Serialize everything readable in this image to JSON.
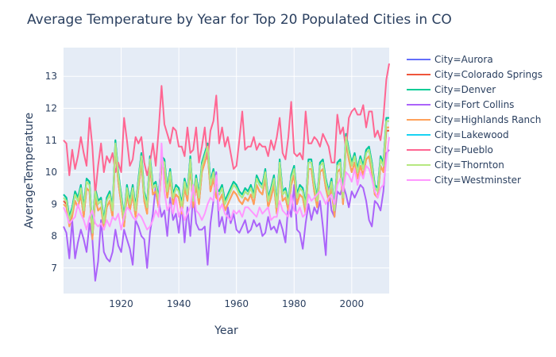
{
  "chart_data": {
    "type": "line",
    "title": "Average Temperature by Year for Top 20 Populated Cities in CO",
    "xlabel": "Year",
    "ylabel": "AverageTemperature",
    "xlim": [
      1900,
      2013
    ],
    "ylim": [
      6.2,
      13.9
    ],
    "x_ticks": [
      "1920",
      "1940",
      "1960",
      "1980",
      "2000"
    ],
    "y_ticks": [
      "7",
      "8",
      "9",
      "10",
      "11",
      "12",
      "13"
    ],
    "grid": true,
    "legend_position": "right",
    "x": [
      1900,
      1901,
      1902,
      1903,
      1904,
      1905,
      1906,
      1907,
      1908,
      1909,
      1910,
      1911,
      1912,
      1913,
      1914,
      1915,
      1916,
      1917,
      1918,
      1919,
      1920,
      1921,
      1922,
      1923,
      1924,
      1925,
      1926,
      1927,
      1928,
      1929,
      1930,
      1931,
      1932,
      1933,
      1934,
      1935,
      1936,
      1937,
      1938,
      1939,
      1940,
      1941,
      1942,
      1943,
      1944,
      1945,
      1946,
      1947,
      1948,
      1949,
      1950,
      1951,
      1952,
      1953,
      1954,
      1955,
      1956,
      1957,
      1958,
      1959,
      1960,
      1961,
      1962,
      1963,
      1964,
      1965,
      1966,
      1967,
      1968,
      1969,
      1970,
      1971,
      1972,
      1973,
      1974,
      1975,
      1976,
      1977,
      1978,
      1979,
      1980,
      1981,
      1982,
      1983,
      1984,
      1985,
      1986,
      1987,
      1988,
      1989,
      1990,
      1991,
      1992,
      1993,
      1994,
      1995,
      1996,
      1997,
      1998,
      1999,
      2000,
      2001,
      2002,
      2003,
      2004,
      2005,
      2006,
      2007,
      2008,
      2009,
      2010,
      2011,
      2012,
      2013
    ],
    "series": [
      {
        "name": "City=Aurora",
        "color": "#636efa",
        "values": [
          9.3,
          9.2,
          8.6,
          8.9,
          9.4,
          9.2,
          9.6,
          8.9,
          9.8,
          9.7,
          8.2,
          9.5,
          9.1,
          9.2,
          8.5,
          9.2,
          9.4,
          8.9,
          11.0,
          10.0,
          9.3,
          8.6,
          9.6,
          9.1,
          9.6,
          8.9,
          9.8,
          10.6,
          9.4,
          9.0,
          10.5,
          9.6,
          9.7,
          9.2,
          10.5,
          10.4,
          9.5,
          10.1,
          9.3,
          9.6,
          9.5,
          9.0,
          9.8,
          9.4,
          10.5,
          9.2,
          9.9,
          9.3,
          10.3,
          10.6,
          10.9,
          9.7,
          10.1,
          9.5,
          9.4,
          9.6,
          9.1,
          9.3,
          9.5,
          9.7,
          9.6,
          9.4,
          9.3,
          9.5,
          9.4,
          9.6,
          9.3,
          9.9,
          9.7,
          9.6,
          10.1,
          9.2,
          9.5,
          9.9,
          9.0,
          10.4,
          9.4,
          9.5,
          9.1,
          9.9,
          10.2,
          9.3,
          9.6,
          9.5,
          9.0,
          10.4,
          10.4,
          9.7,
          9.2,
          10.3,
          10.4,
          9.8,
          9.4,
          9.8,
          8.9,
          10.3,
          10.4,
          9.3,
          11.2,
          10.7,
          10.3,
          10.6,
          10.1,
          10.5,
          10.2,
          10.7,
          10.8,
          10.3,
          9.6,
          9.5,
          10.5,
          10.3,
          11.7,
          11.7
        ]
      },
      {
        "name": "City=Colorado Springs",
        "color": "#ef553b",
        "values": [
          9.1,
          9.0,
          8.4,
          8.7,
          9.1,
          8.9,
          9.3,
          8.6,
          9.5,
          9.4,
          7.9,
          9.2,
          8.8,
          8.9,
          8.3,
          8.9,
          9.1,
          8.6,
          10.7,
          9.7,
          9.0,
          8.3,
          9.3,
          8.8,
          9.3,
          8.6,
          9.5,
          10.3,
          9.1,
          8.7,
          10.2,
          9.3,
          9.4,
          8.9,
          10.2,
          10.1,
          9.2,
          9.8,
          9.0,
          9.3,
          9.2,
          8.7,
          9.5,
          9.1,
          10.2,
          8.9,
          9.6,
          9.0,
          10.0,
          10.3,
          10.6,
          9.4,
          9.8,
          9.2,
          9.1,
          9.3,
          8.8,
          9.0,
          9.2,
          9.4,
          9.3,
          9.1,
          9.0,
          9.2,
          9.1,
          9.3,
          9.0,
          9.6,
          9.4,
          9.3,
          9.8,
          8.9,
          9.2,
          9.6,
          8.7,
          10.1,
          9.1,
          9.2,
          8.8,
          9.6,
          9.9,
          9.0,
          9.3,
          9.2,
          8.7,
          10.1,
          10.1,
          9.4,
          8.9,
          10.0,
          10.1,
          9.5,
          9.1,
          9.5,
          8.6,
          10.0,
          10.1,
          9.0,
          10.9,
          10.4,
          10.0,
          10.3,
          9.8,
          10.2,
          9.9,
          10.4,
          10.5,
          10.0,
          9.3,
          9.2,
          10.2,
          10.0,
          11.3,
          11.3
        ]
      },
      {
        "name": "City=Denver",
        "color": "#00cc96",
        "values": [
          9.3,
          9.2,
          8.6,
          8.9,
          9.4,
          9.2,
          9.6,
          8.9,
          9.8,
          9.7,
          8.2,
          9.5,
          9.1,
          9.2,
          8.5,
          9.2,
          9.4,
          8.9,
          11.0,
          10.0,
          9.3,
          8.6,
          9.6,
          9.1,
          9.6,
          8.9,
          9.8,
          10.6,
          9.4,
          9.0,
          10.5,
          9.6,
          9.7,
          9.2,
          10.5,
          10.4,
          9.5,
          10.1,
          9.3,
          9.6,
          9.5,
          9.0,
          9.8,
          9.4,
          10.5,
          9.2,
          9.9,
          9.3,
          10.3,
          10.6,
          10.9,
          9.7,
          10.1,
          9.5,
          9.4,
          9.6,
          9.1,
          9.3,
          9.5,
          9.7,
          9.6,
          9.4,
          9.3,
          9.5,
          9.4,
          9.6,
          9.3,
          9.9,
          9.7,
          9.6,
          10.1,
          9.2,
          9.5,
          9.9,
          9.0,
          10.4,
          9.4,
          9.5,
          9.1,
          9.9,
          10.2,
          9.3,
          9.6,
          9.5,
          9.0,
          10.4,
          10.4,
          9.7,
          9.2,
          10.3,
          10.4,
          9.8,
          9.4,
          9.8,
          8.9,
          10.3,
          10.4,
          9.3,
          11.2,
          10.7,
          10.3,
          10.6,
          10.1,
          10.5,
          10.2,
          10.7,
          10.8,
          10.3,
          9.6,
          9.5,
          10.5,
          10.3,
          11.7,
          11.7
        ]
      },
      {
        "name": "City=Fort Collins",
        "color": "#ab63fa",
        "values": [
          8.3,
          8.1,
          7.3,
          8.5,
          7.3,
          7.8,
          8.2,
          7.9,
          7.5,
          8.4,
          7.9,
          6.6,
          7.2,
          8.5,
          7.5,
          7.3,
          7.2,
          7.5,
          8.2,
          7.7,
          7.5,
          8.2,
          7.9,
          7.6,
          7.1,
          8.5,
          8.3,
          8.0,
          7.9,
          7.0,
          8.1,
          8.7,
          9.6,
          9.1,
          8.6,
          8.8,
          8.0,
          9.2,
          8.5,
          8.7,
          8.1,
          9.0,
          7.8,
          8.9,
          8.0,
          9.3,
          8.4,
          8.2,
          8.2,
          8.3,
          7.1,
          8.4,
          9.1,
          10.0,
          8.3,
          8.6,
          8.1,
          8.9,
          8.4,
          8.7,
          8.2,
          8.1,
          8.3,
          8.5,
          8.1,
          8.2,
          8.5,
          8.3,
          8.4,
          8.0,
          8.1,
          8.6,
          8.2,
          8.3,
          8.1,
          8.5,
          8.2,
          7.8,
          9.0,
          8.6,
          9.6,
          8.2,
          8.1,
          7.6,
          8.4,
          9.0,
          8.5,
          8.9,
          8.7,
          9.1,
          8.3,
          7.4,
          9.5,
          8.8,
          8.6,
          9.4,
          9.3,
          9.6,
          9.3,
          8.9,
          9.4,
          9.2,
          9.4,
          9.6,
          9.5,
          9.1,
          8.5,
          8.3,
          9.1,
          9.0,
          8.8,
          9.4,
          10.6,
          10.7
        ]
      },
      {
        "name": "City=Highlands Ranch",
        "color": "#ffa15a",
        "values": [
          9.0,
          8.9,
          8.3,
          8.6,
          9.1,
          8.9,
          9.3,
          8.6,
          9.5,
          9.4,
          7.9,
          9.2,
          8.8,
          8.9,
          8.2,
          8.9,
          9.1,
          8.6,
          10.7,
          9.7,
          9.0,
          8.3,
          9.3,
          8.8,
          9.3,
          8.6,
          9.5,
          10.3,
          9.1,
          8.7,
          10.2,
          9.3,
          9.4,
          8.9,
          10.2,
          10.1,
          9.2,
          9.8,
          9.0,
          9.3,
          9.2,
          8.7,
          9.5,
          9.1,
          10.2,
          8.9,
          9.6,
          9.0,
          10.0,
          10.3,
          10.6,
          9.4,
          9.8,
          9.2,
          9.1,
          9.3,
          8.8,
          9.0,
          9.2,
          9.4,
          9.3,
          9.1,
          9.0,
          9.2,
          9.1,
          9.3,
          9.0,
          9.6,
          9.4,
          9.3,
          9.8,
          8.9,
          9.2,
          9.6,
          8.7,
          10.1,
          9.1,
          9.2,
          8.8,
          9.6,
          9.9,
          9.0,
          9.3,
          9.2,
          8.7,
          10.1,
          10.1,
          9.4,
          8.9,
          10.0,
          10.1,
          9.5,
          9.1,
          9.5,
          8.6,
          10.0,
          10.1,
          9.0,
          10.9,
          10.4,
          10.0,
          10.3,
          9.8,
          10.2,
          9.9,
          10.4,
          10.5,
          10.0,
          9.3,
          9.2,
          10.2,
          10.0,
          11.4,
          11.4
        ]
      },
      {
        "name": "City=Lakewood",
        "color": "#19d3f3",
        "values": [
          9.2,
          9.1,
          8.5,
          8.8,
          9.3,
          9.1,
          9.5,
          8.8,
          9.7,
          9.6,
          8.1,
          9.4,
          9.0,
          9.1,
          8.4,
          9.1,
          9.3,
          8.8,
          10.9,
          9.9,
          9.2,
          8.5,
          9.5,
          9.0,
          9.5,
          8.8,
          9.7,
          10.5,
          9.3,
          8.9,
          10.4,
          9.5,
          9.6,
          9.1,
          10.4,
          10.3,
          9.4,
          10.0,
          9.2,
          9.5,
          9.4,
          8.9,
          9.7,
          9.3,
          10.4,
          9.1,
          9.8,
          9.2,
          10.2,
          10.5,
          10.8,
          9.6,
          10.0,
          9.4,
          9.3,
          9.5,
          9.0,
          9.2,
          9.4,
          9.6,
          9.5,
          9.3,
          9.2,
          9.4,
          9.3,
          9.5,
          9.2,
          9.8,
          9.6,
          9.5,
          10.0,
          9.1,
          9.4,
          9.8,
          8.9,
          10.3,
          9.3,
          9.4,
          9.0,
          9.8,
          10.1,
          9.2,
          9.5,
          9.4,
          8.9,
          10.3,
          10.3,
          9.6,
          9.1,
          10.2,
          10.3,
          9.7,
          9.3,
          9.7,
          8.8,
          10.2,
          10.3,
          9.2,
          11.1,
          10.6,
          10.2,
          10.5,
          10.0,
          10.4,
          10.1,
          10.6,
          10.7,
          10.2,
          9.5,
          9.4,
          10.4,
          10.2,
          11.6,
          11.6
        ]
      },
      {
        "name": "City=Pueblo",
        "color": "#ff6692",
        "values": [
          11.0,
          10.9,
          9.9,
          10.7,
          10.1,
          10.5,
          11.1,
          10.6,
          10.2,
          11.7,
          10.8,
          9.3,
          10.2,
          10.9,
          10.0,
          10.5,
          10.3,
          10.6,
          10.0,
          10.3,
          10.0,
          11.7,
          11.0,
          10.2,
          10.4,
          11.1,
          10.9,
          11.1,
          10.3,
          9.9,
          10.3,
          10.9,
          10.2,
          11.3,
          12.7,
          11.5,
          11.2,
          10.9,
          11.4,
          11.3,
          10.8,
          10.8,
          10.5,
          11.4,
          10.6,
          10.7,
          11.4,
          10.3,
          10.8,
          11.4,
          10.4,
          11.3,
          11.6,
          12.4,
          10.9,
          11.4,
          10.8,
          11.1,
          10.6,
          10.1,
          10.2,
          11.0,
          11.9,
          10.7,
          10.8,
          10.8,
          11.1,
          10.7,
          10.9,
          10.8,
          10.8,
          10.5,
          11.0,
          10.7,
          11.1,
          11.7,
          10.6,
          10.4,
          11.1,
          12.2,
          10.6,
          10.5,
          10.6,
          10.4,
          11.9,
          10.9,
          10.9,
          11.1,
          11.0,
          10.8,
          11.2,
          11.0,
          10.8,
          10.3,
          10.3,
          11.8,
          11.2,
          11.4,
          10.7,
          11.7,
          11.9,
          12.0,
          11.8,
          11.8,
          12.1,
          11.4,
          11.9,
          11.9,
          11.1,
          11.3,
          11.0,
          11.7,
          12.9,
          13.4
        ]
      },
      {
        "name": "City=Thornton",
        "color": "#b6e880",
        "values": [
          9.2,
          9.1,
          8.5,
          8.8,
          9.3,
          9.1,
          9.5,
          8.8,
          9.7,
          9.6,
          8.1,
          9.4,
          9.0,
          9.1,
          8.4,
          9.1,
          9.3,
          8.8,
          10.9,
          9.9,
          9.2,
          8.5,
          9.5,
          9.0,
          9.5,
          8.8,
          9.7,
          10.5,
          9.3,
          8.9,
          10.4,
          9.5,
          9.6,
          9.1,
          10.4,
          10.3,
          9.4,
          10.0,
          9.2,
          9.5,
          9.4,
          8.9,
          9.7,
          9.3,
          10.4,
          9.1,
          9.8,
          9.2,
          10.2,
          10.5,
          10.8,
          9.6,
          10.0,
          9.4,
          9.3,
          9.5,
          9.0,
          9.2,
          9.4,
          9.6,
          9.5,
          9.3,
          9.2,
          9.4,
          9.3,
          9.5,
          9.2,
          9.8,
          9.6,
          9.5,
          10.0,
          9.1,
          9.4,
          9.8,
          8.9,
          10.3,
          9.3,
          9.4,
          9.0,
          9.8,
          10.1,
          9.2,
          9.5,
          9.4,
          8.9,
          10.3,
          10.3,
          9.6,
          9.1,
          10.2,
          10.3,
          9.7,
          9.3,
          9.7,
          8.8,
          10.2,
          10.3,
          9.2,
          11.1,
          10.6,
          10.2,
          10.5,
          10.0,
          10.4,
          10.1,
          10.6,
          10.7,
          10.2,
          9.5,
          9.4,
          10.4,
          10.2,
          11.6,
          11.6
        ]
      },
      {
        "name": "City=Westminster",
        "color": "#ff97ff",
        "values": [
          8.9,
          8.7,
          8.4,
          8.5,
          8.6,
          9.0,
          8.7,
          8.5,
          8.2,
          8.6,
          8.8,
          8.4,
          8.3,
          8.4,
          8.2,
          8.5,
          8.3,
          8.6,
          8.5,
          8.7,
          8.2,
          8.6,
          8.9,
          8.8,
          8.6,
          8.5,
          8.7,
          8.6,
          8.4,
          8.2,
          8.3,
          8.5,
          8.8,
          8.6,
          10.9,
          9.4,
          8.8,
          9.0,
          8.7,
          9.2,
          8.6,
          8.9,
          8.5,
          8.7,
          8.9,
          9.6,
          8.8,
          8.7,
          8.5,
          8.7,
          9.0,
          9.2,
          9.1,
          9.9,
          8.8,
          9.0,
          8.7,
          8.6,
          8.5,
          8.8,
          8.7,
          8.8,
          8.6,
          8.9,
          8.9,
          8.8,
          8.7,
          8.6,
          8.9,
          8.7,
          8.8,
          8.9,
          8.5,
          8.6,
          8.6,
          9.1,
          8.8,
          8.7,
          8.6,
          9.3,
          8.8,
          8.7,
          8.9,
          8.6,
          8.7,
          9.3,
          9.1,
          9.2,
          9.3,
          9.4,
          9.2,
          9.0,
          9.2,
          9.3,
          9.0,
          9.6,
          9.8,
          9.4,
          10.0,
          9.9,
          9.7,
          10.1,
          9.6,
          10.0,
          9.8,
          10.2,
          10.1,
          9.8,
          9.4,
          9.2,
          9.5,
          9.6,
          10.4,
          11.1
        ]
      }
    ]
  }
}
